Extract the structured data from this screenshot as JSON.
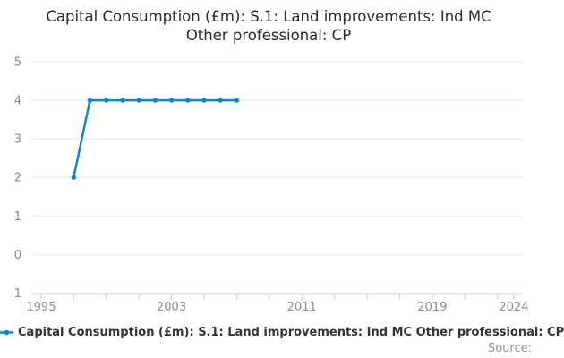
{
  "title": {
    "line1": "Capital Consumption (£m): S.1: Land improvements: Ind MC",
    "line2": "Other professional: CP"
  },
  "legend": {
    "label": "Capital Consumption (£m): S.1: Land improvements: Ind MC Other professional: CP"
  },
  "footer": {
    "source_label": "Source:"
  },
  "colors": {
    "series": "#1781c6",
    "grid": "#e7e7e7",
    "axis": "#c6d3df",
    "tick_text": "#8b8b8b",
    "title_text": "#2b2b2b",
    "legend_text": "#333333",
    "source_text": "#8f8f8f"
  },
  "chart_data": {
    "type": "line",
    "title": "Capital Consumption (£m): S.1: Land improvements: Ind MC Other professional: CP",
    "series": [
      {
        "name": "Capital Consumption (£m): S.1: Land improvements: Ind MC Other professional: CP",
        "color": "#1781c6",
        "x": [
          1997,
          1998,
          1999,
          2000,
          2001,
          2002,
          2003,
          2004,
          2005,
          2006,
          2007
        ],
        "values": [
          2,
          4,
          4,
          4,
          4,
          4,
          4,
          4,
          4,
          4,
          4
        ]
      }
    ],
    "xlim": [
      1994.4,
      2024.5
    ],
    "ylim": [
      -1,
      5
    ],
    "y_ticks": [
      -1,
      0,
      1,
      2,
      3,
      4,
      5
    ],
    "x_ticks": [
      1995,
      1997,
      1999,
      2001,
      2003,
      2005,
      2007,
      2009,
      2011,
      2013,
      2015,
      2017,
      2019,
      2021,
      2023,
      2024
    ],
    "x_labeled_ticks": [
      1995,
      2003,
      2011,
      2019,
      2024
    ],
    "grid": true,
    "markers": true,
    "legend_position": "bottom-left",
    "xlabel": "",
    "ylabel": ""
  }
}
